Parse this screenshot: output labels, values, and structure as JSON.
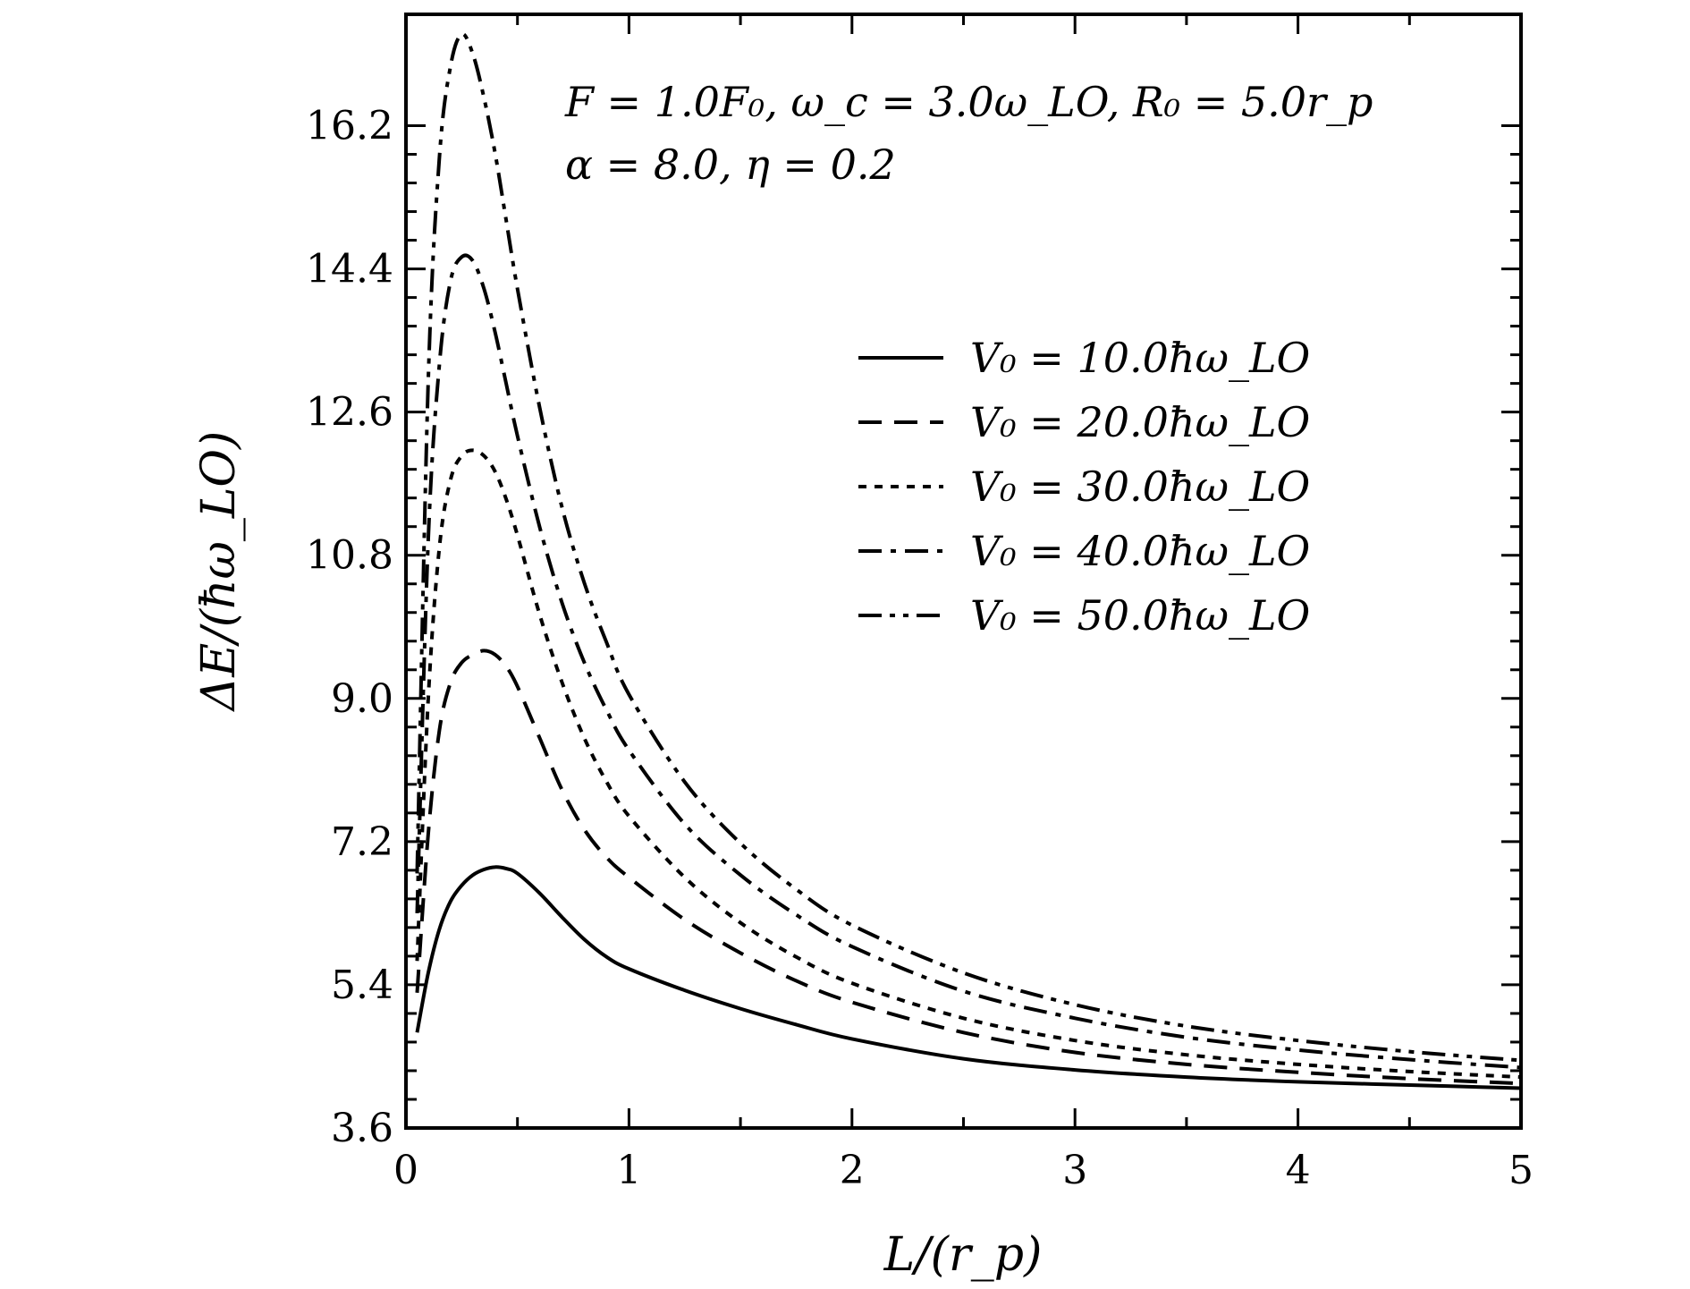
{
  "chart_data": {
    "type": "line",
    "title": "",
    "xlabel": "L/(r_p)",
    "ylabel": "ΔE/(ħω_LO)",
    "xlim": [
      0,
      5
    ],
    "ylim": [
      3.6,
      17.6
    ],
    "xticks": [
      "0",
      "1",
      "2",
      "3",
      "4",
      "5"
    ],
    "yticks": [
      "3.6",
      "5.4",
      "7.2",
      "9.0",
      "10.8",
      "12.6",
      "14.4",
      "16.2"
    ],
    "grid": false,
    "legend_position": "top-right",
    "annotations": [
      "F = 1.0F₀, ω_c = 3.0ω_LO, R₀ = 5.0r_p",
      "α = 8.0, η = 0.2"
    ],
    "x": [
      0.05,
      0.1,
      0.15,
      0.2,
      0.25,
      0.3,
      0.35,
      0.4,
      0.45,
      0.5,
      0.6,
      0.7,
      0.8,
      0.9,
      1.0,
      1.25,
      1.5,
      1.75,
      2.0,
      2.5,
      3.0,
      3.5,
      4.0,
      4.5,
      5.0
    ],
    "series": [
      {
        "name": "V₀ = 10.0ħω_LO",
        "dash": "solid",
        "values": [
          4.8,
          5.55,
          6.1,
          6.45,
          6.65,
          6.78,
          6.85,
          6.88,
          6.86,
          6.8,
          6.55,
          6.25,
          5.97,
          5.75,
          5.6,
          5.33,
          5.1,
          4.9,
          4.72,
          4.47,
          4.33,
          4.24,
          4.18,
          4.14,
          4.1
        ]
      },
      {
        "name": "V₀ = 20.0ħω_LO",
        "dash": "dashed",
        "values": [
          5.3,
          7.3,
          8.6,
          9.2,
          9.45,
          9.55,
          9.6,
          9.55,
          9.4,
          9.15,
          8.5,
          7.85,
          7.35,
          7.0,
          6.75,
          6.22,
          5.8,
          5.45,
          5.18,
          4.8,
          4.55,
          4.4,
          4.3,
          4.22,
          4.16
        ]
      },
      {
        "name": "V₀ = 30.0ħω_LO",
        "dash": "dotted",
        "values": [
          5.7,
          9.0,
          10.9,
          11.75,
          12.05,
          12.12,
          12.05,
          11.85,
          11.5,
          11.05,
          10.05,
          9.2,
          8.5,
          7.95,
          7.52,
          6.75,
          6.18,
          5.75,
          5.42,
          4.98,
          4.7,
          4.52,
          4.4,
          4.31,
          4.24
        ]
      },
      {
        "name": "V₀ = 40.0ħω_LO",
        "dash": "dashdot",
        "values": [
          6.3,
          11.0,
          13.2,
          14.25,
          14.55,
          14.5,
          14.15,
          13.6,
          12.95,
          12.3,
          11.15,
          10.2,
          9.45,
          8.85,
          8.35,
          7.42,
          6.78,
          6.28,
          5.88,
          5.32,
          4.98,
          4.74,
          4.58,
          4.46,
          4.36
        ]
      },
      {
        "name": "V₀ = 50.0ħω_LO",
        "dash": "dashdotdot",
        "values": [
          6.8,
          13.0,
          15.8,
          16.95,
          17.35,
          17.1,
          16.55,
          15.85,
          15.0,
          14.15,
          12.65,
          11.4,
          10.45,
          9.7,
          9.05,
          7.95,
          7.18,
          6.6,
          6.15,
          5.55,
          5.15,
          4.88,
          4.7,
          4.56,
          4.45
        ]
      }
    ]
  }
}
